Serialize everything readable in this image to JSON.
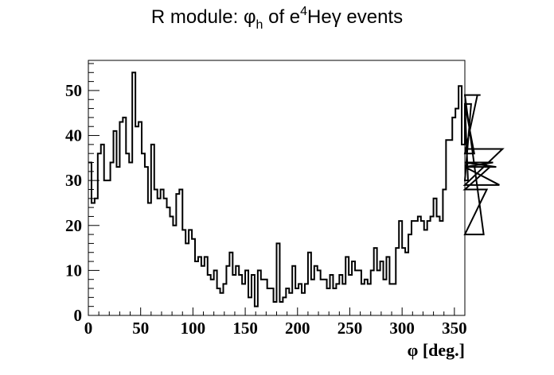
{
  "chart_data": {
    "type": "histogram",
    "title": {
      "main": "R module: ",
      "phi": "φ",
      "phi_sub": "h",
      "of": " of e",
      "sup": "4",
      "rest": "Heγ events"
    },
    "xlabel": "φ [deg.]",
    "ylabel": "",
    "xlim": [
      0,
      360
    ],
    "ylim": [
      0,
      56.7
    ],
    "x_ticks": [
      "0",
      "50",
      "100",
      "150",
      "200",
      "250",
      "300",
      "350"
    ],
    "x_tick_values": [
      0,
      50,
      100,
      150,
      200,
      250,
      300,
      350
    ],
    "y_ticks": [
      "0",
      "10",
      "20",
      "30",
      "40",
      "50"
    ],
    "y_tick_values": [
      0,
      10,
      20,
      30,
      40,
      50
    ],
    "bin_width": 3,
    "values": [
      34,
      25,
      26,
      36,
      38,
      30,
      30,
      34,
      41,
      33,
      43,
      44,
      36,
      34,
      54,
      42,
      43,
      36,
      33,
      25,
      38,
      28,
      26,
      28,
      26,
      24,
      22,
      20,
      27,
      28,
      19,
      16,
      19,
      17,
      12,
      13,
      11,
      13,
      9,
      8,
      10,
      6,
      5,
      7,
      11,
      14,
      9,
      11,
      9,
      7,
      10,
      4,
      9,
      2,
      10,
      8,
      8,
      6,
      6,
      3,
      16,
      3,
      4,
      6,
      5,
      11,
      6,
      7,
      5,
      7,
      14,
      8,
      11,
      10,
      8,
      8,
      6,
      9,
      6,
      7,
      9,
      7,
      13,
      9,
      12,
      10,
      10,
      7,
      8,
      7,
      10,
      15,
      10,
      12,
      8,
      13,
      7,
      7,
      15,
      21,
      15,
      14,
      18,
      21,
      21,
      22,
      21,
      19,
      21,
      22,
      26,
      22,
      21,
      28,
      39,
      39,
      44,
      46,
      51,
      38,
      47,
      30,
      47,
      36,
      49,
      49,
      18,
      28,
      33,
      34,
      33,
      29,
      37
    ]
  },
  "colors": {
    "line": "#000000",
    "background": "#ffffff",
    "frame": "#000000"
  }
}
